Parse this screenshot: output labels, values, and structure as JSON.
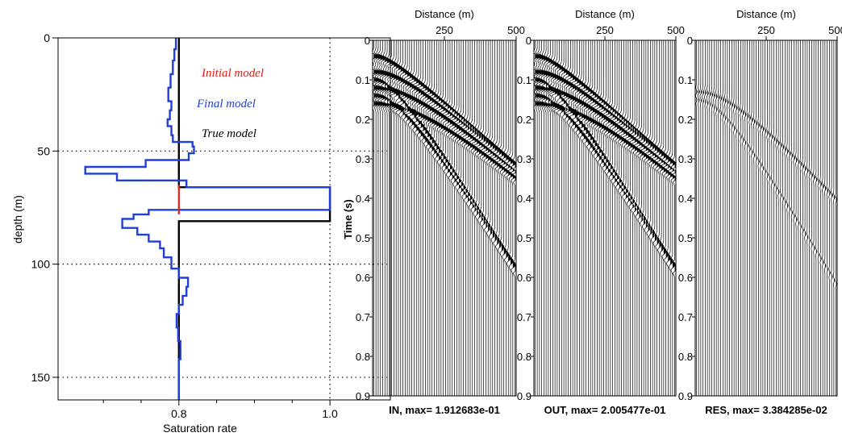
{
  "colors": {
    "initial": "#e0201c",
    "final": "#1f3fd8",
    "true": "#000000",
    "grid": "#000000"
  },
  "chart_data": [
    {
      "type": "line",
      "id": "saturation-profile",
      "xlabel": "Saturation rate",
      "ylabel": "depth (m)",
      "xlim": [
        0.64,
        1.08
      ],
      "ylim": [
        0,
        160
      ],
      "y_inverted": true,
      "xticks": [
        0.8,
        1.0
      ],
      "xtick_labels": [
        "0.8",
        "1.0"
      ],
      "yticks": [
        0,
        50,
        100,
        150
      ],
      "ytick_labels": [
        "0",
        "50",
        "100",
        "150"
      ],
      "grid": "dotted at depth 50, 100, 150 and saturation 1.0",
      "legend_placement": "top-right",
      "series": [
        {
          "name": "Initial model",
          "color_key": "initial",
          "points": [
            [
              0.8,
              65
            ],
            [
              0.8,
              78
            ]
          ]
        },
        {
          "name": "Final model",
          "color_key": "final",
          "points": [
            [
              0.796,
              0
            ],
            [
              0.796,
              5
            ],
            [
              0.794,
              5
            ],
            [
              0.794,
              10
            ],
            [
              0.792,
              10
            ],
            [
              0.792,
              16
            ],
            [
              0.789,
              16
            ],
            [
              0.789,
              22
            ],
            [
              0.786,
              22
            ],
            [
              0.786,
              28
            ],
            [
              0.79,
              28
            ],
            [
              0.79,
              32
            ],
            [
              0.788,
              32
            ],
            [
              0.788,
              36
            ],
            [
              0.785,
              36
            ],
            [
              0.785,
              39
            ],
            [
              0.79,
              39
            ],
            [
              0.79,
              43
            ],
            [
              0.792,
              43
            ],
            [
              0.792,
              46
            ],
            [
              0.818,
              46
            ],
            [
              0.818,
              48
            ],
            [
              0.82,
              48
            ],
            [
              0.82,
              51
            ],
            [
              0.813,
              51
            ],
            [
              0.813,
              54
            ],
            [
              0.756,
              54
            ],
            [
              0.756,
              57
            ],
            [
              0.676,
              57
            ],
            [
              0.676,
              60
            ],
            [
              0.718,
              60
            ],
            [
              0.718,
              63
            ],
            [
              0.81,
              63
            ],
            [
              0.81,
              66
            ],
            [
              1.0,
              66
            ],
            [
              1.0,
              76
            ],
            [
              0.76,
              76
            ],
            [
              0.76,
              78
            ],
            [
              0.74,
              78
            ],
            [
              0.74,
              80
            ],
            [
              0.725,
              80
            ],
            [
              0.725,
              84
            ],
            [
              0.745,
              84
            ],
            [
              0.745,
              87
            ],
            [
              0.76,
              87
            ],
            [
              0.76,
              90
            ],
            [
              0.775,
              90
            ],
            [
              0.775,
              93
            ],
            [
              0.78,
              93
            ],
            [
              0.78,
              97
            ],
            [
              0.79,
              97
            ],
            [
              0.79,
              102
            ],
            [
              0.8,
              102
            ],
            [
              0.8,
              106
            ],
            [
              0.812,
              106
            ],
            [
              0.812,
              110
            ],
            [
              0.81,
              110
            ],
            [
              0.81,
              114
            ],
            [
              0.805,
              114
            ],
            [
              0.805,
              118
            ],
            [
              0.8,
              118
            ],
            [
              0.8,
              122
            ],
            [
              0.797,
              122
            ],
            [
              0.797,
              128
            ],
            [
              0.799,
              128
            ],
            [
              0.799,
              134
            ],
            [
              0.802,
              134
            ],
            [
              0.802,
              142
            ],
            [
              0.8,
              142
            ],
            [
              0.8,
              150
            ],
            [
              0.8,
              160
            ]
          ]
        },
        {
          "name": "True model",
          "color_key": "true",
          "points": [
            [
              0.8,
              0
            ],
            [
              0.8,
              66
            ],
            [
              1.0,
              66
            ],
            [
              1.0,
              81
            ],
            [
              0.8,
              81
            ],
            [
              0.8,
              160
            ]
          ]
        }
      ]
    },
    {
      "type": "line",
      "id": "seismogram-in",
      "title": "IN, max= 1.912683e-01",
      "xlabel": "Distance (m)",
      "ylabel": "Time (s)",
      "xlim": [
        0,
        500
      ],
      "ylim": [
        0,
        0.9
      ],
      "y_inverted": true,
      "xticks": [
        250,
        500
      ],
      "xtick_labels": [
        "250",
        "500"
      ],
      "yticks": [
        0,
        0.1,
        0.2,
        0.3,
        0.4,
        0.5,
        0.6,
        0.7,
        0.8,
        0.9
      ],
      "ytick_labels": [
        "0",
        "0.1",
        "0.2",
        "0.3",
        "0.4",
        "0.5",
        "0.6",
        "0.7",
        "0.8",
        "0.9"
      ],
      "traces": 64,
      "event_amplitude": 1.0,
      "events": [
        {
          "t0": 0.04,
          "v": 1600,
          "amp": 1.0
        },
        {
          "t0": 0.08,
          "v": 1600,
          "amp": 1.0
        },
        {
          "t0": 0.12,
          "v": 1600,
          "amp": 1.0
        },
        {
          "t0": 0.16,
          "v": 1600,
          "amp": 0.9
        },
        {
          "t0": 0.1,
          "v": 880,
          "amp": 0.9
        },
        {
          "t0": 0.14,
          "v": 880,
          "amp": 0.8
        }
      ]
    },
    {
      "type": "line",
      "id": "seismogram-out",
      "title": "OUT, max= 2.005477e-01",
      "xlabel": "Distance (m)",
      "xlim": [
        0,
        500
      ],
      "ylim": [
        0,
        0.9
      ],
      "y_inverted": true,
      "xticks": [
        250,
        500
      ],
      "xtick_labels": [
        "250",
        "500"
      ],
      "yticks": [
        0,
        0.1,
        0.2,
        0.3,
        0.4,
        0.5,
        0.6,
        0.7,
        0.8,
        0.9
      ],
      "ytick_labels": [
        "0",
        "0.1",
        "0.2",
        "0.3",
        "0.4",
        "0.5",
        "0.6",
        "0.7",
        "0.8",
        "0.9"
      ],
      "traces": 64,
      "event_amplitude": 1.0,
      "events": [
        {
          "t0": 0.04,
          "v": 1600,
          "amp": 1.0
        },
        {
          "t0": 0.08,
          "v": 1600,
          "amp": 1.0
        },
        {
          "t0": 0.12,
          "v": 1600,
          "amp": 1.0
        },
        {
          "t0": 0.16,
          "v": 1600,
          "amp": 0.9
        },
        {
          "t0": 0.1,
          "v": 880,
          "amp": 0.9
        },
        {
          "t0": 0.14,
          "v": 880,
          "amp": 0.8
        }
      ]
    },
    {
      "type": "line",
      "id": "seismogram-res",
      "title": "RES, max= 3.384285e-02",
      "xlabel": "Distance (m)",
      "xlim": [
        0,
        500
      ],
      "ylim": [
        0,
        0.9
      ],
      "y_inverted": true,
      "xticks": [
        250,
        500
      ],
      "xtick_labels": [
        "250",
        "500"
      ],
      "yticks": [
        0,
        0.1,
        0.2,
        0.3,
        0.4,
        0.5,
        0.6,
        0.7,
        0.8,
        0.9
      ],
      "ytick_labels": [
        "0",
        "0.1",
        "0.2",
        "0.3",
        "0.4",
        "0.5",
        "0.6",
        "0.7",
        "0.8",
        "0.9"
      ],
      "traces": 64,
      "event_amplitude": 0.35,
      "events": [
        {
          "t0": 0.13,
          "v": 1300,
          "amp": 0.8
        },
        {
          "t0": 0.15,
          "v": 830,
          "amp": 0.6
        }
      ]
    }
  ]
}
